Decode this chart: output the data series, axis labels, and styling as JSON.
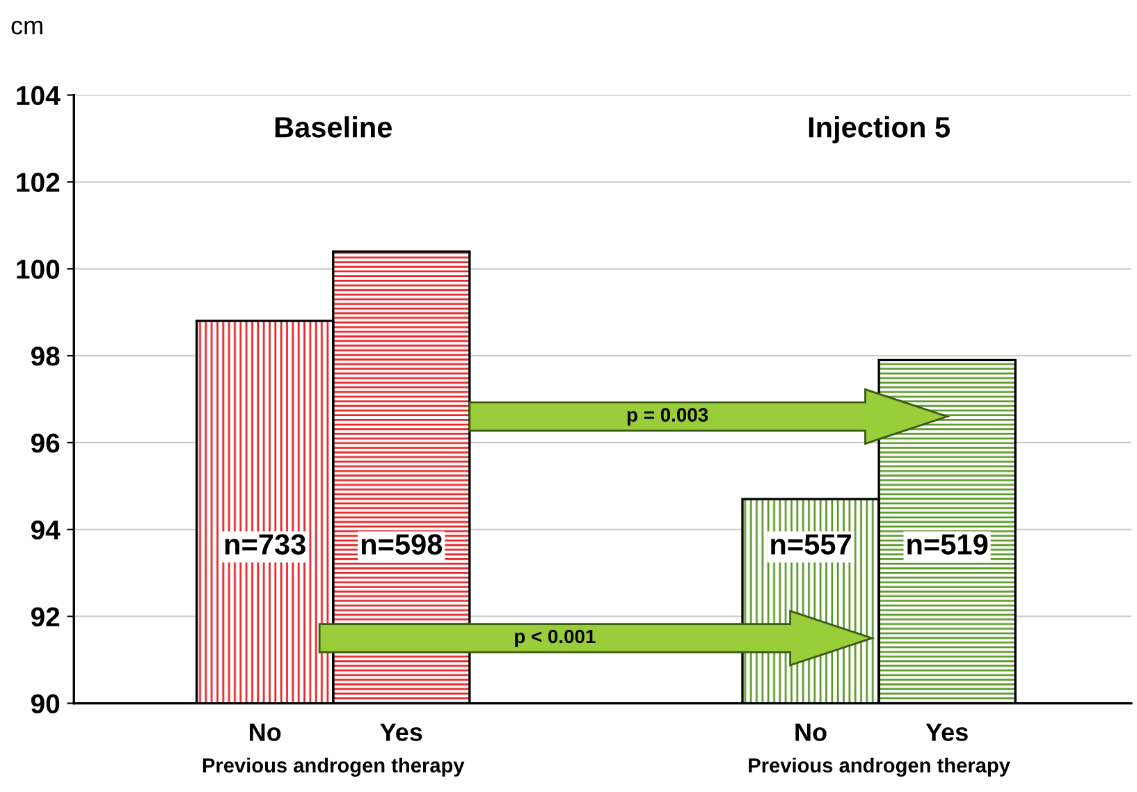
{
  "chart_data": {
    "type": "bar",
    "ylabel": "cm",
    "categories": [
      "No",
      "Yes",
      null,
      null,
      "No",
      "Yes"
    ],
    "values": [
      98.8,
      100.4,
      null,
      null,
      94.7,
      97.9
    ],
    "colors": [
      "#e8262a",
      "#e8262a",
      "#ffffff",
      "#ffffff",
      "#5e9a2a",
      "#5e9a2a"
    ],
    "ylim": [
      90,
      104
    ],
    "yticks": [
      90,
      92,
      94,
      96,
      98,
      100,
      102,
      104
    ],
    "grid": "y",
    "annotations": [
      "Baseline",
      "Injection 5",
      "Previous androgen therapy",
      "Previous androgen therapy",
      "p = 0.003",
      "p < 0.001",
      "n=733",
      "n=598",
      "n=557",
      "n=519"
    ]
  }
}
